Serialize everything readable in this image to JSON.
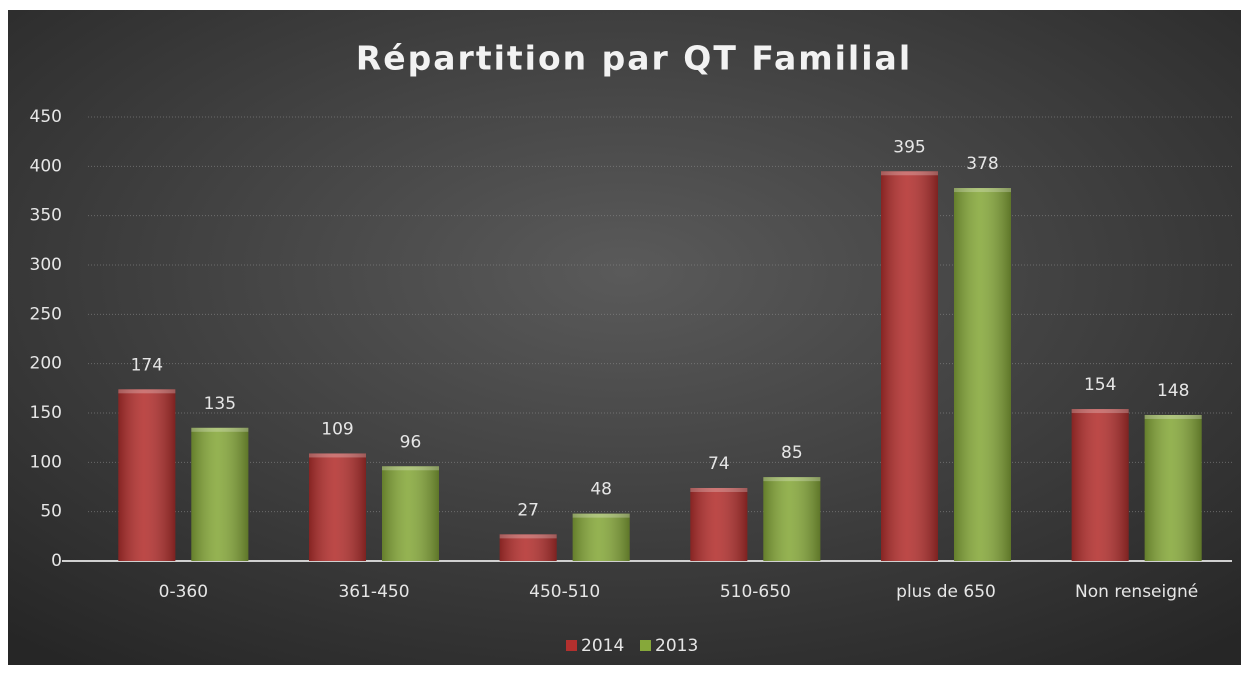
{
  "chart_data": {
    "type": "bar",
    "title": "Répartition par QT Familial",
    "categories": [
      "0-360",
      "361-450",
      "450-510",
      "510-650",
      "plus de 650",
      "Non renseigné"
    ],
    "series": [
      {
        "name": "2014",
        "color": "#b3302e",
        "values": [
          174,
          109,
          27,
          74,
          395,
          154
        ]
      },
      {
        "name": "2013",
        "color": "#86a83a",
        "values": [
          135,
          96,
          48,
          85,
          378,
          148
        ]
      }
    ],
    "ylim": [
      0,
      450
    ],
    "yticks": [
      0,
      50,
      100,
      150,
      200,
      250,
      300,
      350,
      400,
      450
    ],
    "grid": true,
    "legend": "bottom"
  }
}
